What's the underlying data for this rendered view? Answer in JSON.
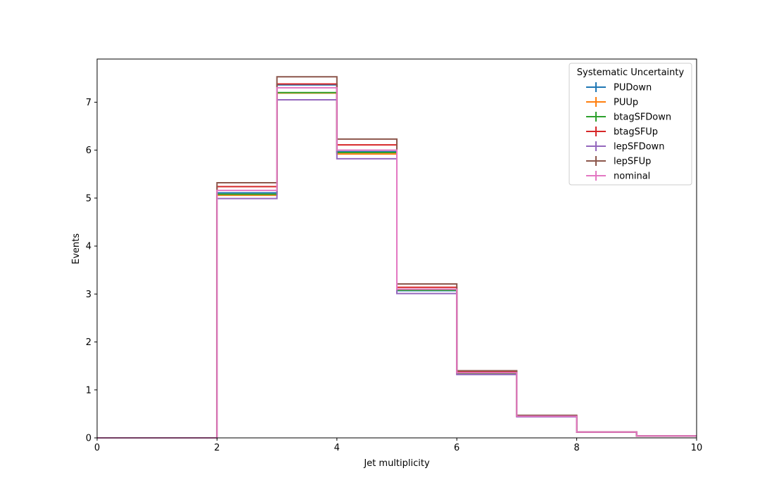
{
  "chart_data": {
    "type": "line",
    "step": "post",
    "xlabel": "Jet multiplicity",
    "ylabel": "Events",
    "xlim": [
      0,
      10
    ],
    "ylim": [
      0,
      7.9
    ],
    "xticks": [
      0,
      2,
      4,
      6,
      8,
      10
    ],
    "yticks": [
      0,
      1,
      2,
      3,
      4,
      5,
      6,
      7
    ],
    "bin_edges": [
      0,
      1,
      2,
      3,
      4,
      5,
      6,
      7,
      8,
      9,
      10
    ],
    "legend": {
      "title": "Systematic Uncertainty",
      "placement": "top-right"
    },
    "series": [
      {
        "name": "PUDown",
        "color": "#1f77b4",
        "values": [
          0,
          0,
          5.11,
          7.36,
          5.97,
          3.07,
          1.36,
          0.45,
          0.12,
          0.04
        ]
      },
      {
        "name": "PUUp",
        "color": "#ff7f0e",
        "values": [
          0,
          0,
          5.06,
          7.19,
          5.92,
          3.1,
          1.34,
          0.45,
          0.12,
          0.04
        ]
      },
      {
        "name": "btagSFDown",
        "color": "#2ca02c",
        "values": [
          0,
          0,
          5.08,
          7.2,
          5.95,
          3.08,
          1.35,
          0.45,
          0.12,
          0.04
        ]
      },
      {
        "name": "btagSFUp",
        "color": "#d62728",
        "values": [
          0,
          0,
          5.24,
          7.38,
          6.11,
          3.14,
          1.38,
          0.46,
          0.12,
          0.04
        ]
      },
      {
        "name": "lepSFDown",
        "color": "#9467bd",
        "values": [
          0,
          0,
          4.99,
          7.05,
          5.82,
          3.01,
          1.32,
          0.44,
          0.12,
          0.04
        ]
      },
      {
        "name": "lepSFUp",
        "color": "#8c564b",
        "values": [
          0,
          0,
          5.32,
          7.53,
          6.23,
          3.21,
          1.4,
          0.47,
          0.12,
          0.04
        ]
      },
      {
        "name": "nominal",
        "color": "#e377c2",
        "values": [
          0,
          0,
          5.16,
          7.3,
          6.0,
          3.1,
          1.36,
          0.45,
          0.12,
          0.04
        ]
      }
    ]
  }
}
